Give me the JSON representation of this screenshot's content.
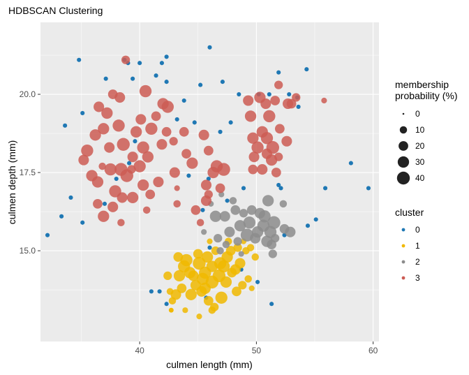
{
  "chart_data": {
    "type": "scatter",
    "title": "HDBSCAN Clustering",
    "xlabel": "culmen length (mm)",
    "ylabel": "culmen depth (mm)",
    "xlim": [
      31.5,
      60.5
    ],
    "ylim": [
      12.1,
      22.3
    ],
    "x_ticks": [
      40,
      50,
      60
    ],
    "y_ticks": [
      15.0,
      17.5,
      20.0
    ],
    "x_tick_labels": [
      "40",
      "50",
      "60"
    ],
    "y_tick_labels": [
      "15.0",
      "17.5",
      "20.0"
    ],
    "grid": true,
    "background": "#ebebeb",
    "legend_placement": "right",
    "size_legend": {
      "title_lines": [
        "membership",
        "probability (%)"
      ],
      "values": [
        0,
        10,
        20,
        30,
        40
      ],
      "labels": [
        "0",
        "10",
        "20",
        "30",
        "40"
      ]
    },
    "color_legend": {
      "title": "cluster",
      "entries": [
        {
          "label": "0",
          "color": "#1f78b4"
        },
        {
          "label": "1",
          "color": "#f0b800"
        },
        {
          "label": "2",
          "color": "#8c8c8c"
        },
        {
          "label": "3",
          "color": "#cc5c54"
        }
      ]
    },
    "series": [
      {
        "name": "0",
        "color": "#1f78b4",
        "points": [
          [
            34.8,
            21.1
          ],
          [
            38.7,
            21.1
          ],
          [
            39.0,
            21.0
          ],
          [
            40.0,
            21.0
          ],
          [
            41.9,
            21.0
          ],
          [
            42.3,
            21.2
          ],
          [
            46.0,
            21.5
          ],
          [
            54.3,
            20.8
          ],
          [
            51.9,
            20.7
          ],
          [
            37.1,
            20.5
          ],
          [
            39.4,
            20.5
          ],
          [
            41.4,
            20.6
          ],
          [
            42.3,
            20.4
          ],
          [
            45.2,
            20.3
          ],
          [
            47.1,
            20.4
          ],
          [
            48.5,
            20.0
          ],
          [
            50.2,
            20.0
          ],
          [
            51.1,
            20.0
          ],
          [
            52.8,
            20.0
          ],
          [
            53.5,
            19.9
          ],
          [
            43.8,
            19.8
          ],
          [
            53.6,
            19.6
          ],
          [
            35.1,
            19.4
          ],
          [
            33.6,
            19.0
          ],
          [
            43.2,
            19.2
          ],
          [
            44.7,
            19.1
          ],
          [
            46.9,
            18.8
          ],
          [
            47.8,
            19.1
          ],
          [
            39.6,
            18.5
          ],
          [
            39.1,
            17.8
          ],
          [
            58.1,
            17.8
          ],
          [
            38.0,
            17.3
          ],
          [
            44.2,
            17.4
          ],
          [
            45.9,
            17.3
          ],
          [
            48.9,
            17.0
          ],
          [
            51.9,
            17.1
          ],
          [
            52.1,
            17.0
          ],
          [
            55.9,
            17.0
          ],
          [
            59.6,
            17.0
          ],
          [
            34.1,
            16.7
          ],
          [
            37.0,
            16.5
          ],
          [
            47.5,
            16.6
          ],
          [
            45.4,
            16.3
          ],
          [
            33.3,
            16.1
          ],
          [
            35.1,
            15.9
          ],
          [
            52.4,
            15.5
          ],
          [
            55.1,
            16.0
          ],
          [
            54.4,
            15.8
          ],
          [
            32.1,
            15.5
          ],
          [
            46.0,
            15.1
          ],
          [
            48.7,
            14.4
          ],
          [
            50.1,
            14.0
          ],
          [
            51.3,
            13.3
          ],
          [
            45.7,
            13.5
          ],
          [
            41.7,
            13.7
          ],
          [
            41.0,
            13.7
          ],
          [
            42.3,
            13.3
          ]
        ],
        "sizes": [
          2,
          2,
          2,
          2,
          2,
          2,
          2,
          2,
          2,
          2,
          2,
          2,
          2,
          2,
          2,
          2,
          2,
          2,
          2,
          2,
          2,
          2,
          2,
          2,
          2,
          2,
          2,
          2,
          2,
          2,
          2,
          2,
          2,
          2,
          2,
          2,
          2,
          2,
          2,
          2,
          2,
          2,
          2,
          2,
          2,
          2,
          2,
          2,
          2,
          2,
          2,
          2,
          2,
          2,
          2,
          2,
          2
        ]
      },
      {
        "name": "1",
        "color": "#f0b800",
        "points": [
          [
            43.4,
            14.2
          ],
          [
            44.0,
            14.7
          ],
          [
            45.1,
            14.6
          ],
          [
            45.6,
            14.3
          ],
          [
            46.2,
            14.5
          ],
          [
            46.8,
            14.2
          ],
          [
            47.2,
            14.5
          ],
          [
            47.5,
            14.8
          ],
          [
            48.2,
            14.4
          ],
          [
            45.0,
            14.9
          ],
          [
            46.5,
            15.0
          ],
          [
            47.8,
            15.0
          ],
          [
            48.4,
            15.1
          ],
          [
            49.1,
            15.0
          ],
          [
            49.5,
            15.1
          ],
          [
            43.1,
            13.6
          ],
          [
            43.6,
            13.8
          ],
          [
            44.4,
            13.6
          ],
          [
            45.3,
            13.7
          ],
          [
            45.9,
            13.4
          ],
          [
            46.4,
            13.2
          ],
          [
            47.0,
            13.5
          ],
          [
            45.6,
            13.8
          ],
          [
            44.8,
            13.9
          ],
          [
            46.2,
            14.0
          ],
          [
            47.4,
            14.0
          ],
          [
            48.3,
            13.7
          ],
          [
            48.8,
            13.9
          ],
          [
            49.3,
            14.1
          ],
          [
            42.4,
            14.2
          ],
          [
            42.8,
            13.4
          ],
          [
            43.8,
            14.5
          ],
          [
            44.6,
            14.2
          ],
          [
            43.3,
            14.8
          ],
          [
            45.8,
            14.8
          ],
          [
            46.9,
            14.6
          ],
          [
            47.9,
            14.3
          ],
          [
            48.6,
            14.6
          ],
          [
            49.9,
            14.8
          ],
          [
            46.0,
            15.3
          ],
          [
            47.6,
            15.3
          ],
          [
            48.9,
            15.3
          ],
          [
            42.6,
            13.7
          ],
          [
            45.1,
            12.9
          ],
          [
            46.2,
            13.1
          ],
          [
            49.6,
            13.8
          ],
          [
            42.7,
            13.1
          ],
          [
            43.9,
            13.1
          ],
          [
            45.4,
            14.1
          ],
          [
            44.3,
            14.3
          ]
        ],
        "sizes": [
          30,
          35,
          40,
          35,
          30,
          40,
          35,
          30,
          25,
          20,
          15,
          20,
          15,
          10,
          10,
          25,
          20,
          30,
          25,
          20,
          15,
          35,
          30,
          25,
          40,
          30,
          20,
          15,
          10,
          15,
          10,
          35,
          25,
          20,
          30,
          35,
          20,
          25,
          10,
          5,
          10,
          5,
          8,
          5,
          10,
          5,
          3,
          5,
          35,
          30
        ]
      },
      {
        "name": "2",
        "color": "#8c8c8c",
        "points": [
          [
            46.5,
            16.1
          ],
          [
            47.3,
            16.1
          ],
          [
            48.2,
            16.3
          ],
          [
            48.9,
            16.2
          ],
          [
            49.6,
            16.3
          ],
          [
            50.3,
            16.2
          ],
          [
            51.0,
            16.6
          ],
          [
            50.7,
            16.1
          ],
          [
            51.5,
            15.9
          ],
          [
            49.4,
            15.9
          ],
          [
            48.6,
            15.8
          ],
          [
            47.7,
            15.6
          ],
          [
            50.1,
            15.6
          ],
          [
            51.2,
            15.6
          ],
          [
            52.4,
            15.7
          ],
          [
            46.7,
            15.4
          ],
          [
            47.4,
            15.2
          ],
          [
            48.4,
            15.3
          ],
          [
            49.9,
            15.4
          ],
          [
            51.3,
            15.2
          ],
          [
            51.6,
            15.4
          ],
          [
            52.9,
            15.6
          ],
          [
            50.6,
            15.8
          ],
          [
            48.0,
            16.6
          ],
          [
            46.9,
            15.0
          ],
          [
            48.7,
            14.9
          ],
          [
            49.2,
            15.5
          ],
          [
            51.4,
            14.9
          ],
          [
            45.5,
            15.6
          ],
          [
            46.1,
            16.5
          ],
          [
            50.9,
            15.3
          ],
          [
            52.3,
            16.5
          ],
          [
            47.0,
            16.8
          ]
        ],
        "sizes": [
          30,
          25,
          20,
          15,
          20,
          25,
          30,
          35,
          40,
          35,
          30,
          25,
          30,
          35,
          20,
          15,
          10,
          15,
          25,
          20,
          15,
          25,
          35,
          10,
          10,
          5,
          40,
          15,
          5,
          5,
          30,
          10,
          5
        ]
      },
      {
        "name": "3",
        "color": "#cc5c54",
        "points": [
          [
            38.8,
            21.1
          ],
          [
            40.5,
            20.1
          ],
          [
            37.7,
            20.0
          ],
          [
            38.3,
            19.9
          ],
          [
            37.2,
            19.4
          ],
          [
            36.5,
            19.6
          ],
          [
            36.9,
            18.9
          ],
          [
            38.2,
            19.0
          ],
          [
            38.6,
            18.4
          ],
          [
            39.7,
            18.8
          ],
          [
            40.1,
            19.2
          ],
          [
            41.0,
            18.9
          ],
          [
            41.4,
            19.3
          ],
          [
            42.0,
            19.7
          ],
          [
            42.4,
            19.6
          ],
          [
            41.9,
            18.4
          ],
          [
            42.3,
            18.8
          ],
          [
            40.7,
            18.0
          ],
          [
            39.4,
            18.0
          ],
          [
            38.4,
            17.6
          ],
          [
            37.5,
            17.6
          ],
          [
            36.4,
            17.2
          ],
          [
            35.2,
            17.9
          ],
          [
            35.9,
            17.4
          ],
          [
            35.5,
            18.2
          ],
          [
            36.2,
            18.7
          ],
          [
            37.4,
            18.3
          ],
          [
            38.9,
            17.4
          ],
          [
            40.0,
            17.7
          ],
          [
            40.3,
            17.1
          ],
          [
            40.9,
            16.8
          ],
          [
            41.6,
            17.2
          ],
          [
            40.3,
            18.3
          ],
          [
            39.4,
            16.7
          ],
          [
            38.5,
            16.7
          ],
          [
            37.9,
            16.9
          ],
          [
            36.4,
            16.5
          ],
          [
            37.7,
            16.4
          ],
          [
            36.9,
            16.1
          ],
          [
            38.4,
            15.9
          ],
          [
            42.9,
            18.5
          ],
          [
            44.0,
            18.1
          ],
          [
            43.0,
            17.5
          ],
          [
            44.5,
            17.8
          ],
          [
            45.5,
            18.7
          ],
          [
            45.9,
            18.2
          ],
          [
            46.3,
            17.5
          ],
          [
            47.2,
            17.6
          ],
          [
            46.6,
            17.7
          ],
          [
            45.7,
            17.1
          ],
          [
            46.9,
            17.0
          ],
          [
            45.9,
            16.8
          ],
          [
            45.7,
            16.6
          ],
          [
            44.8,
            16.3
          ],
          [
            45.2,
            15.9
          ],
          [
            43.2,
            16.5
          ],
          [
            50.3,
            19.9
          ],
          [
            50.8,
            19.7
          ],
          [
            51.6,
            19.8
          ],
          [
            52.7,
            19.7
          ],
          [
            51.9,
            20.3
          ],
          [
            51.1,
            19.3
          ],
          [
            50.5,
            18.8
          ],
          [
            50.1,
            18.3
          ],
          [
            50.9,
            18.1
          ],
          [
            51.3,
            17.9
          ],
          [
            52.0,
            18.9
          ],
          [
            52.6,
            18.5
          ],
          [
            50.9,
            18.6
          ],
          [
            51.4,
            18.3
          ],
          [
            49.7,
            18.6
          ],
          [
            49.8,
            18.0
          ],
          [
            49.7,
            17.6
          ],
          [
            50.5,
            17.6
          ],
          [
            51.7,
            17.5
          ],
          [
            51.9,
            18.0
          ],
          [
            49.5,
            19.3
          ],
          [
            49.3,
            19.8
          ],
          [
            53.0,
            19.7
          ],
          [
            53.4,
            19.9
          ],
          [
            55.8,
            19.8
          ],
          [
            43.8,
            18.8
          ],
          [
            36.8,
            17.7
          ],
          [
            39.3,
            17.6
          ],
          [
            40.6,
            16.3
          ],
          [
            43.2,
            17.0
          ]
        ],
        "sizes": [
          15,
          35,
          20,
          25,
          30,
          25,
          30,
          35,
          40,
          30,
          25,
          35,
          20,
          30,
          35,
          25,
          20,
          30,
          25,
          40,
          35,
          30,
          25,
          30,
          35,
          30,
          25,
          40,
          35,
          30,
          20,
          25,
          35,
          30,
          25,
          35,
          20,
          25,
          30,
          10,
          15,
          20,
          25,
          30,
          25,
          20,
          30,
          40,
          35,
          25,
          20,
          15,
          25,
          20,
          10,
          10,
          30,
          25,
          20,
          25,
          15,
          35,
          30,
          35,
          25,
          30,
          20,
          25,
          35,
          40,
          30,
          25,
          20,
          25,
          20,
          15,
          30,
          25,
          20,
          15,
          5,
          20,
          10,
          15,
          10,
          5
        ]
      }
    ]
  }
}
